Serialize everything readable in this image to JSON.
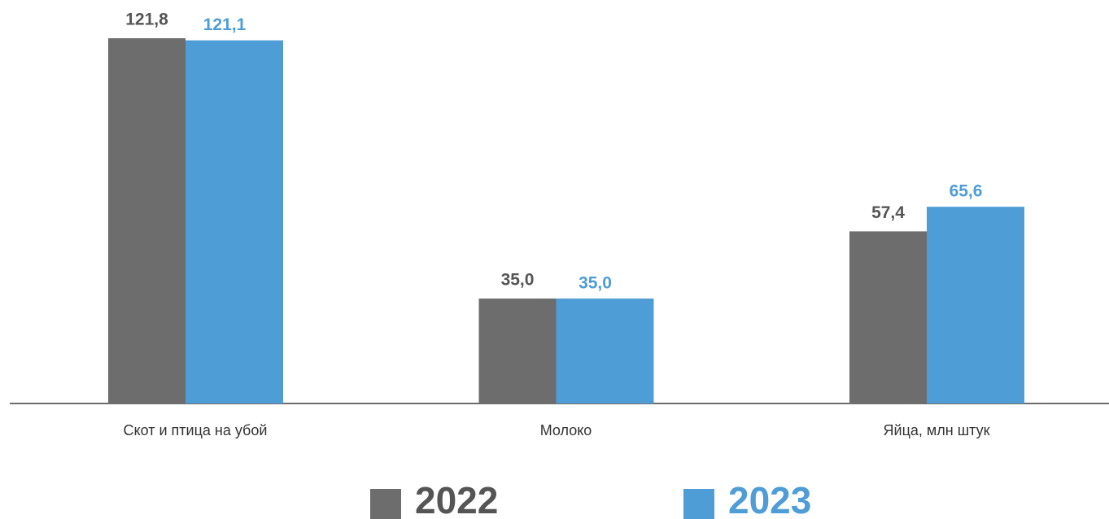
{
  "chart_data": {
    "type": "bar",
    "categories": [
      "Скот и птица на убой",
      "Молоко",
      "Яйца, млн штук"
    ],
    "series": [
      {
        "name": "2022",
        "color": "#6d6d6d",
        "values": [
          121.8,
          35.0,
          57.4
        ],
        "value_labels": [
          "121,8",
          "35,0",
          "57,4"
        ]
      },
      {
        "name": "2023",
        "color": "#4f9dd6",
        "values": [
          121.1,
          35.0,
          65.6
        ],
        "value_labels": [
          "121,1",
          "35,0",
          "65,6"
        ]
      }
    ],
    "legend": "bottom"
  }
}
